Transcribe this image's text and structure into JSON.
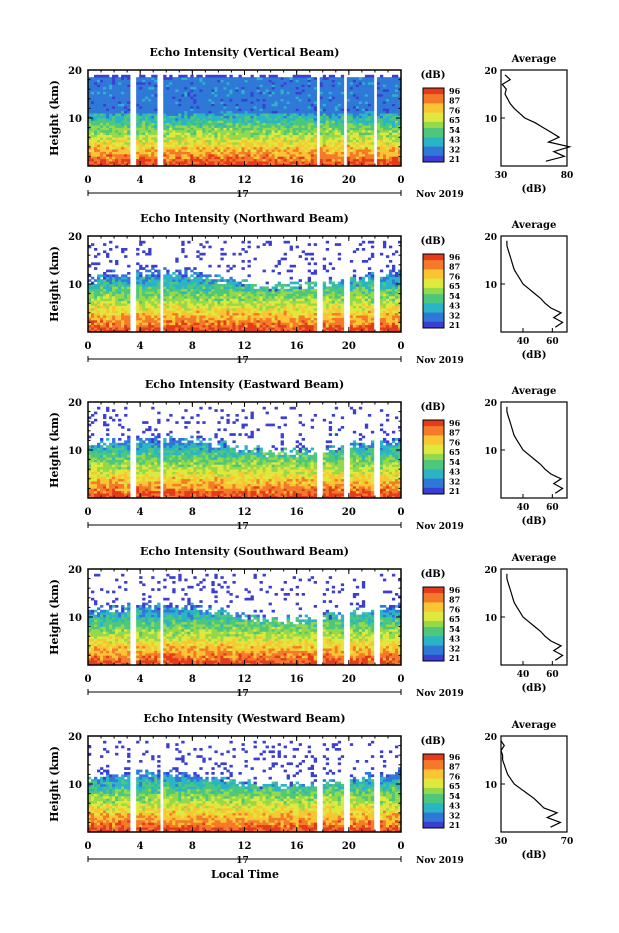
{
  "figure": {
    "xlabel": "Local Time",
    "date_label": "Nov 2019",
    "day_label": "17"
  },
  "colorbar": {
    "unit": "(dB)",
    "ticks": [
      "96",
      "87",
      "76",
      "65",
      "54",
      "43",
      "32",
      "21"
    ],
    "colors": [
      "#e33b1c",
      "#f47a2a",
      "#f9c533",
      "#dfe83c",
      "#95d94a",
      "#4cc77c",
      "#2ab4c6",
      "#2f78d8",
      "#3a3ed3"
    ]
  },
  "chart_data": [
    {
      "type": "heatmap",
      "title": "Echo Intensity (Vertical Beam)",
      "ylabel": "Height (km)",
      "xlim": [
        0,
        24
      ],
      "ylim": [
        0,
        20
      ],
      "xticks": [
        "0",
        "4",
        "8",
        "12",
        "16",
        "20",
        "0"
      ],
      "yticks": [
        "10",
        "20"
      ],
      "gaps_hours": [
        3.4,
        5.6,
        17.7,
        19.7,
        22.0
      ],
      "profile": {
        "title": "Average",
        "xlabel": "(dB)",
        "xticks": [
          "30",
          "80"
        ],
        "xlim": [
          30,
          80
        ],
        "height_km": [
          1,
          2,
          3,
          4,
          5,
          6,
          7,
          8,
          9,
          10,
          11,
          12,
          13,
          14,
          15,
          16,
          17,
          18,
          19
        ],
        "value_db": [
          64,
          78,
          70,
          82,
          66,
          74,
          68,
          62,
          56,
          48,
          44,
          40,
          37,
          35,
          33,
          34,
          31,
          37,
          33
        ]
      }
    },
    {
      "type": "heatmap",
      "title": "Echo Intensity (Northward Beam)",
      "ylabel": "Height (km)",
      "xlim": [
        0,
        24
      ],
      "ylim": [
        0,
        20
      ],
      "xticks": [
        "0",
        "4",
        "8",
        "12",
        "16",
        "20",
        "0"
      ],
      "yticks": [
        "10",
        "20"
      ],
      "gaps_hours": [
        3.5,
        5.7,
        17.8,
        19.8,
        22.1
      ],
      "profile": {
        "title": "Average",
        "xlabel": "(dB)",
        "xticks": [
          "40",
          "60"
        ],
        "xlim": [
          25,
          70
        ],
        "height_km": [
          1,
          2,
          3,
          4,
          5,
          6,
          7,
          8,
          9,
          10,
          11,
          12,
          13,
          14,
          15,
          16,
          17,
          18,
          19
        ],
        "value_db": [
          62,
          67,
          61,
          66,
          59,
          55,
          52,
          48,
          44,
          40,
          38,
          36,
          34,
          33,
          32,
          31,
          30,
          29,
          29
        ]
      }
    },
    {
      "type": "heatmap",
      "title": "Echo Intensity (Eastward Beam)",
      "ylabel": "Height (km)",
      "xlim": [
        0,
        24
      ],
      "ylim": [
        0,
        20
      ],
      "xticks": [
        "0",
        "4",
        "8",
        "12",
        "16",
        "20",
        "0"
      ],
      "yticks": [
        "10",
        "20"
      ],
      "gaps_hours": [
        3.5,
        5.7,
        17.8,
        19.8,
        22.1
      ],
      "profile": {
        "title": "Average",
        "xlabel": "(dB)",
        "xticks": [
          "40",
          "60"
        ],
        "xlim": [
          25,
          70
        ],
        "height_km": [
          1,
          2,
          3,
          4,
          5,
          6,
          7,
          8,
          9,
          10,
          11,
          12,
          13,
          14,
          15,
          16,
          17,
          18,
          19
        ],
        "value_db": [
          62,
          67,
          61,
          66,
          59,
          55,
          52,
          48,
          44,
          40,
          38,
          36,
          34,
          33,
          32,
          31,
          30,
          29,
          29
        ]
      }
    },
    {
      "type": "heatmap",
      "title": "Echo Intensity (Southward Beam)",
      "ylabel": "Height (km)",
      "xlim": [
        0,
        24
      ],
      "ylim": [
        0,
        20
      ],
      "xticks": [
        "0",
        "4",
        "8",
        "12",
        "16",
        "20",
        "0"
      ],
      "yticks": [
        "10",
        "20"
      ],
      "gaps_hours": [
        3.5,
        5.7,
        17.8,
        19.8,
        22.1
      ],
      "profile": {
        "title": "Average",
        "xlabel": "(dB)",
        "xticks": [
          "40",
          "60"
        ],
        "xlim": [
          25,
          70
        ],
        "height_km": [
          1,
          2,
          3,
          4,
          5,
          6,
          7,
          8,
          9,
          10,
          11,
          12,
          13,
          14,
          15,
          16,
          17,
          18,
          19
        ],
        "value_db": [
          62,
          67,
          61,
          66,
          59,
          55,
          52,
          48,
          44,
          40,
          38,
          36,
          34,
          33,
          32,
          31,
          30,
          29,
          29
        ]
      }
    },
    {
      "type": "heatmap",
      "title": "Echo Intensity (Westward Beam)",
      "ylabel": "Height (km)",
      "xlim": [
        0,
        24
      ],
      "ylim": [
        0,
        20
      ],
      "xticks": [
        "0",
        "4",
        "8",
        "12",
        "16",
        "20",
        "0"
      ],
      "yticks": [
        "10",
        "20"
      ],
      "gaps_hours": [
        3.5,
        5.7,
        17.8,
        19.8,
        22.1
      ],
      "profile": {
        "title": "Average",
        "xlabel": "(dB)",
        "xticks": [
          "30",
          "70"
        ],
        "xlim": [
          30,
          70
        ],
        "height_km": [
          1,
          2,
          3,
          4,
          5,
          6,
          7,
          8,
          9,
          10,
          11,
          12,
          13,
          14,
          15,
          16,
          17,
          18,
          19
        ],
        "value_db": [
          60,
          66,
          58,
          64,
          56,
          53,
          50,
          46,
          42,
          38,
          36,
          34,
          33,
          32,
          31,
          31,
          30,
          32,
          30
        ]
      }
    }
  ]
}
